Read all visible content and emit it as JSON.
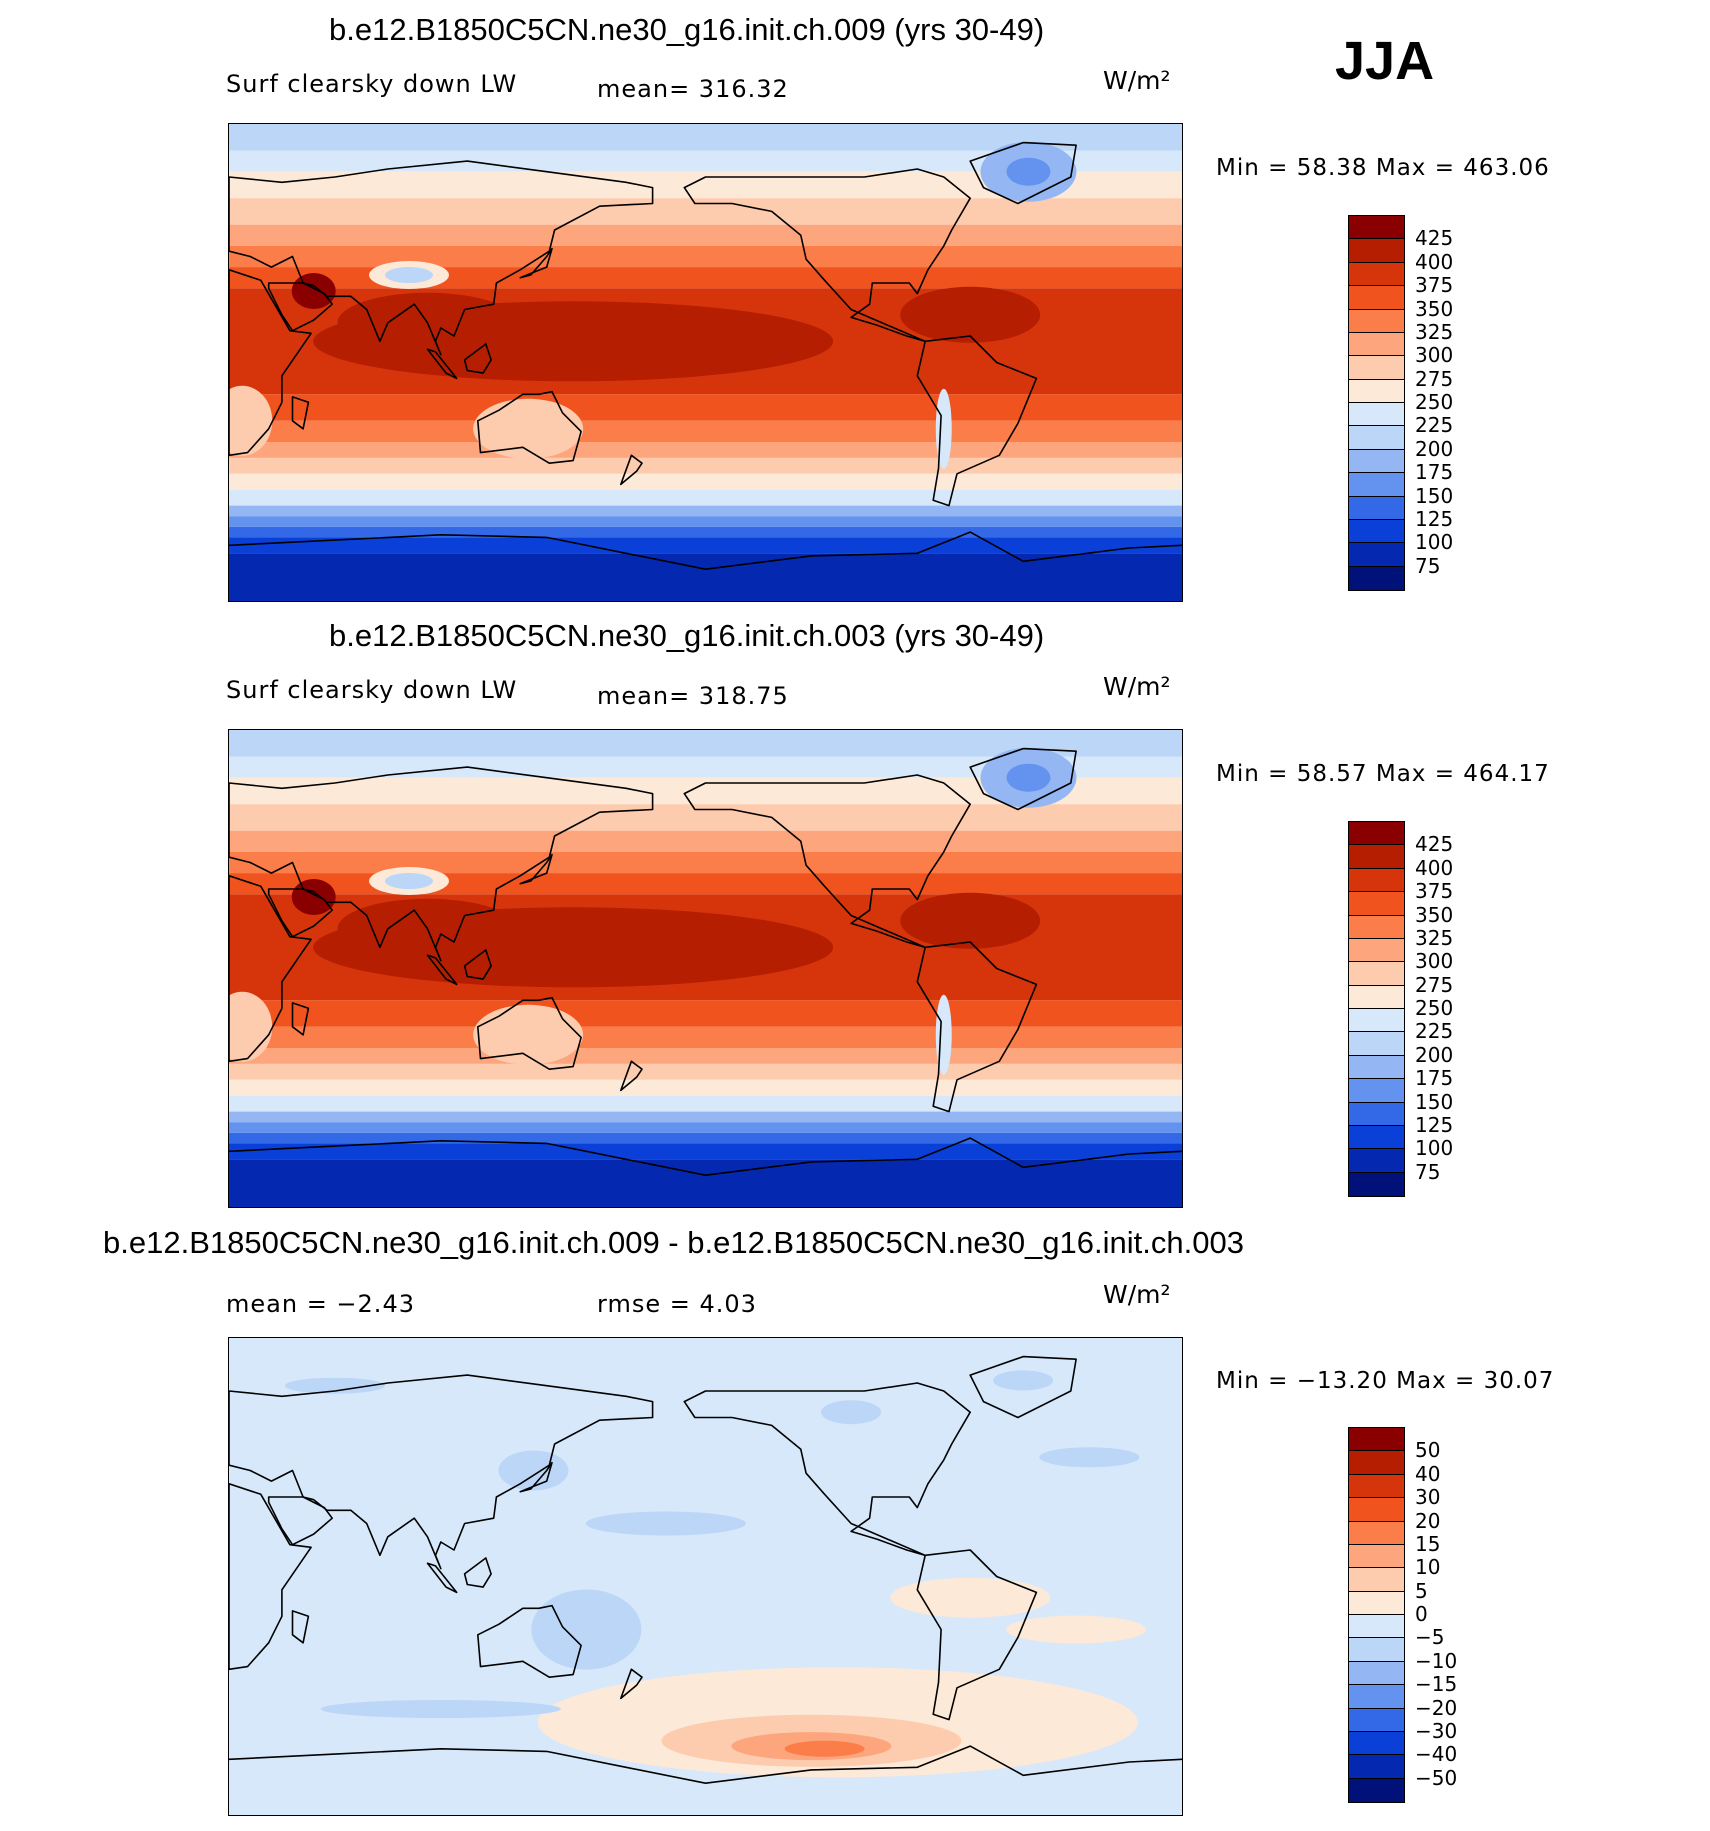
{
  "season": "JJA",
  "panels": [
    {
      "title": "b.e12.B1850C5CN.ne30_g16.init.ch.009 (yrs 30-49)",
      "left_label": "Surf clearsky down LW",
      "center_label": "mean= 316.32",
      "units": "W/m²",
      "minmax": "Min =   58.38 Max = 463.06",
      "colorbar": {
        "labels": [
          "425",
          "400",
          "375",
          "350",
          "325",
          "300",
          "275",
          "250",
          "225",
          "200",
          "175",
          "150",
          "125",
          "100",
          "75"
        ],
        "colors": [
          "#8a0000",
          "#b51e00",
          "#d6350b",
          "#f0531e",
          "#fb7d4a",
          "#fda57d",
          "#fdcbad",
          "#fde9d8",
          "#d6e8fa",
          "#bcd6f8",
          "#94b7f4",
          "#6493ef",
          "#3369e6",
          "#0a3fd8",
          "#0528b0",
          "#00117a"
        ]
      },
      "field": {
        "type": "surface_lw"
      }
    },
    {
      "title": "b.e12.B1850C5CN.ne30_g16.init.ch.003 (yrs 30-49)",
      "left_label": "Surf clearsky down LW",
      "center_label": "mean= 318.75",
      "units": "W/m²",
      "minmax": "Min =   58.57 Max = 464.17",
      "colorbar": {
        "labels": [
          "425",
          "400",
          "375",
          "350",
          "325",
          "300",
          "275",
          "250",
          "225",
          "200",
          "175",
          "150",
          "125",
          "100",
          "75"
        ],
        "colors": [
          "#8a0000",
          "#b51e00",
          "#d6350b",
          "#f0531e",
          "#fb7d4a",
          "#fda57d",
          "#fdcbad",
          "#fde9d8",
          "#d6e8fa",
          "#bcd6f8",
          "#94b7f4",
          "#6493ef",
          "#3369e6",
          "#0a3fd8",
          "#0528b0",
          "#00117a"
        ]
      },
      "field": {
        "type": "surface_lw"
      }
    },
    {
      "title": "b.e12.B1850C5CN.ne30_g16.init.ch.009 - b.e12.B1850C5CN.ne30_g16.init.ch.003",
      "left_label": "mean =   −2.43",
      "center_label": "rmse =    4.03",
      "units": "W/m²",
      "minmax": "Min = −13.20 Max =   30.07",
      "colorbar": {
        "labels": [
          "50",
          "40",
          "30",
          "20",
          "15",
          "10",
          "5",
          "0",
          "−5",
          "−10",
          "−15",
          "−20",
          "−30",
          "−40",
          "−50"
        ],
        "colors": [
          "#8a0000",
          "#b51e00",
          "#d6350b",
          "#f0531e",
          "#fb7d4a",
          "#fda57d",
          "#fdcbad",
          "#fde9d8",
          "#d6e8fa",
          "#bcd6f8",
          "#94b7f4",
          "#6493ef",
          "#3369e6",
          "#0a3fd8",
          "#0528b0",
          "#00117a"
        ]
      },
      "field": {
        "type": "difference"
      }
    }
  ]
}
